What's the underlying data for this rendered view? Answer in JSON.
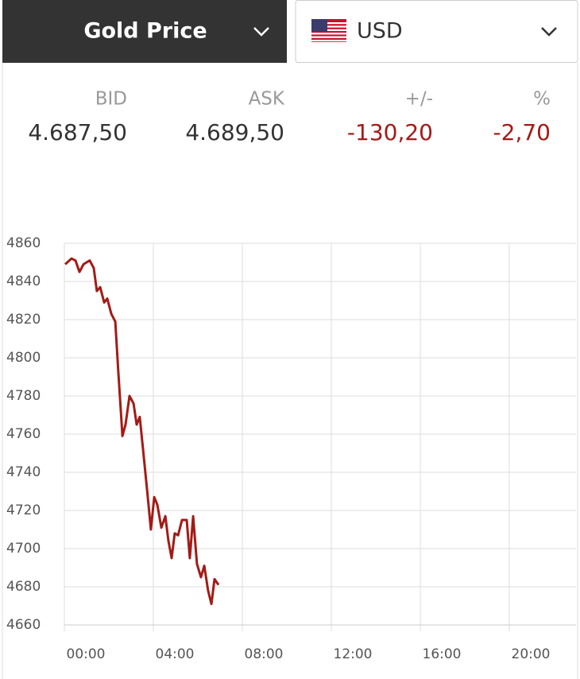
{
  "header": {
    "title": "Gold Price",
    "currency": "USD"
  },
  "quote": {
    "headers": [
      "BID",
      "ASK",
      "+/-",
      "%"
    ],
    "values": [
      "4.687,50",
      "4.689,50",
      "-130,20",
      "-2,70"
    ]
  },
  "chart_data": {
    "type": "line",
    "color": "#a31b16",
    "grid": true,
    "x": [
      0.04,
      0.32,
      0.5,
      0.68,
      0.86,
      1.14,
      1.32,
      1.46,
      1.61,
      1.79,
      1.93,
      2.11,
      2.29,
      2.43,
      2.61,
      2.75,
      2.93,
      3.11,
      3.25,
      3.39,
      3.57,
      3.75,
      3.89,
      4.04,
      4.18,
      4.36,
      4.54,
      4.68,
      4.82,
      4.96,
      5.11,
      5.29,
      5.5,
      5.64,
      5.79,
      5.96,
      6.14,
      6.29,
      6.46,
      6.61,
      6.75,
      6.93
    ],
    "values": [
      4849,
      4852,
      4851,
      4845,
      4849,
      4851,
      4847,
      4835,
      4837,
      4829,
      4831,
      4823,
      4819,
      4792,
      4759,
      4765,
      4780,
      4776,
      4765,
      4769,
      4748,
      4727,
      4710,
      4727,
      4723,
      4711,
      4717,
      4704,
      4695,
      4708,
      4707,
      4715,
      4715,
      4695,
      4717,
      4692,
      4685,
      4691,
      4678,
      4671,
      4684,
      4681
    ],
    "xlim": [
      0,
      23
    ],
    "xticks": [
      {
        "value": 0,
        "label": "00:00"
      },
      {
        "value": 4,
        "label": "04:00"
      },
      {
        "value": 8,
        "label": "08:00"
      },
      {
        "value": 12,
        "label": "12:00"
      },
      {
        "value": 16,
        "label": "16:00"
      },
      {
        "value": 20,
        "label": "20:00"
      }
    ],
    "ylim": [
      4660,
      4860
    ],
    "yticks": [
      4660,
      4680,
      4700,
      4720,
      4740,
      4760,
      4780,
      4800,
      4820,
      4840,
      4860
    ]
  }
}
